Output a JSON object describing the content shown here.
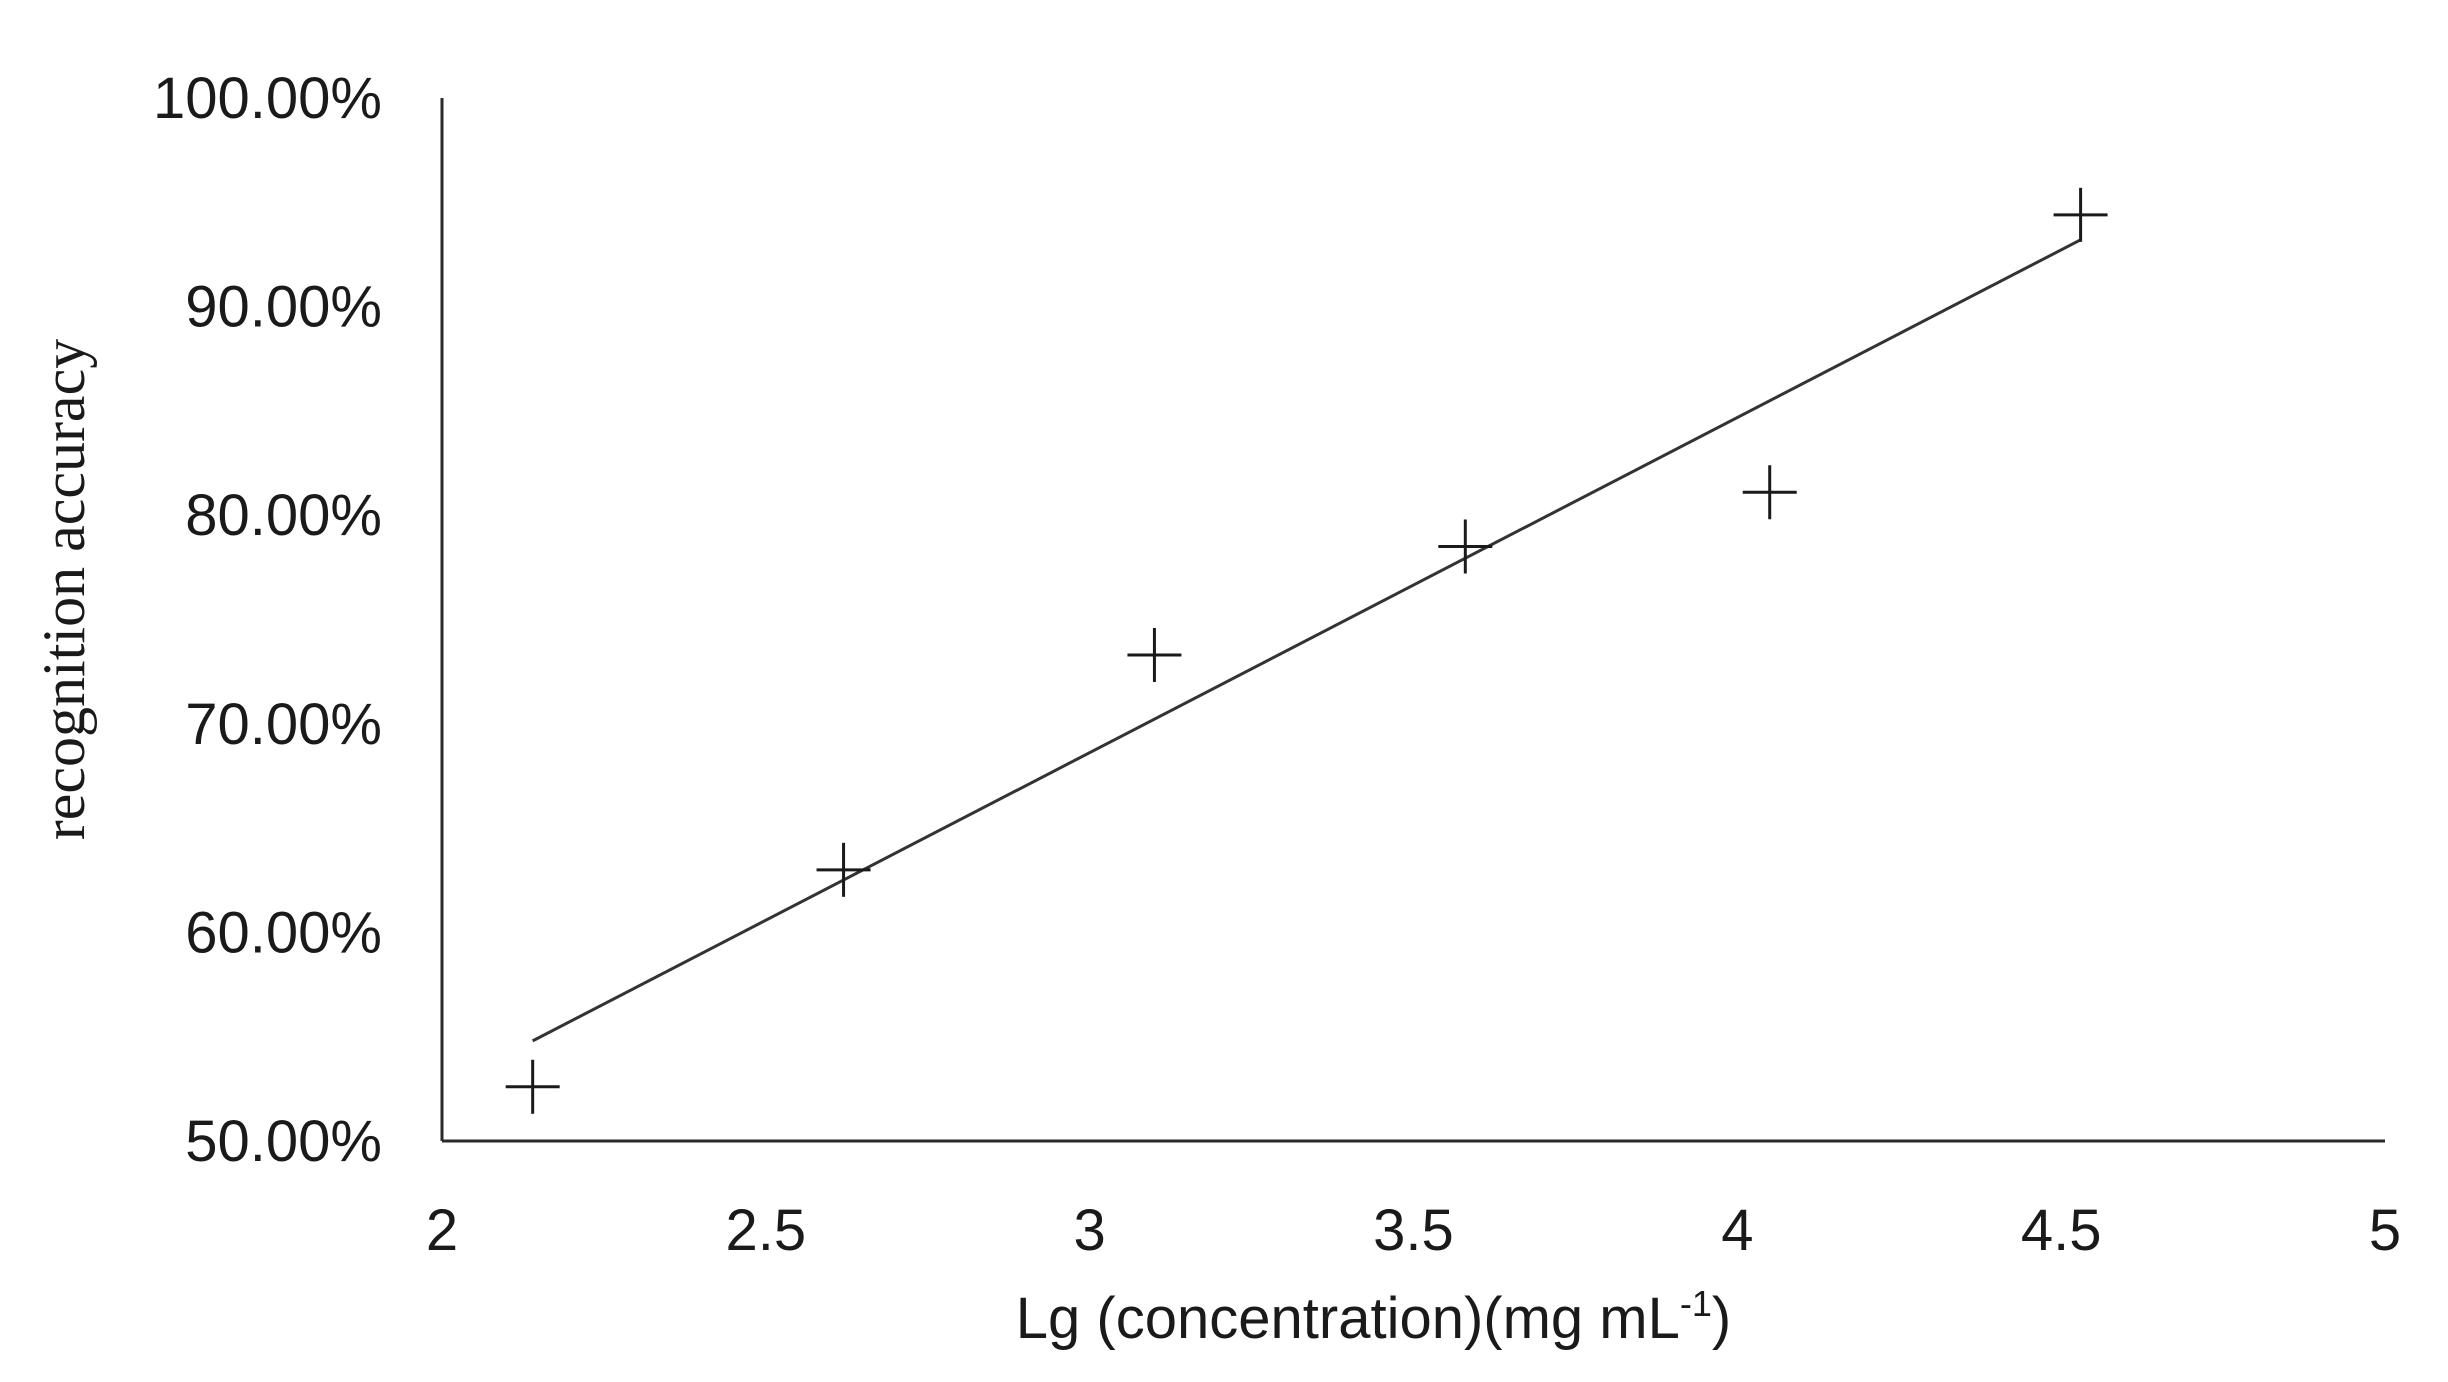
{
  "chart_data": {
    "type": "scatter",
    "title": "",
    "xlabel": "Lg (concentration)(mg mL",
    "xlabel_superscript": "-1",
    "xlabel_suffix": ")",
    "ylabel": "recognition accuracy",
    "xlim": [
      2,
      5
    ],
    "ylim": [
      0.5,
      1.0
    ],
    "x_ticks": [
      2,
      2.5,
      3,
      3.5,
      4,
      4.5,
      5
    ],
    "x_tick_labels": [
      "2",
      "2.5",
      "3",
      "3.5",
      "4",
      "4.5",
      "5"
    ],
    "y_ticks": [
      0.5,
      0.6,
      0.7,
      0.8,
      0.9,
      1.0
    ],
    "y_tick_labels": [
      "50.00%",
      "60.00%",
      "70.00%",
      "80.00%",
      "90.00%",
      "100.00%"
    ],
    "grid": false,
    "marker": "plus",
    "series": [
      {
        "x": [
          2.14,
          2.62,
          3.1,
          3.58,
          4.05,
          4.53
        ],
        "y": [
          0.526,
          0.63,
          0.733,
          0.785,
          0.811,
          0.944
        ]
      }
    ],
    "trendline": {
      "type": "linear",
      "x": [
        2.14,
        4.53
      ],
      "y": [
        0.548,
        0.932
      ]
    }
  }
}
